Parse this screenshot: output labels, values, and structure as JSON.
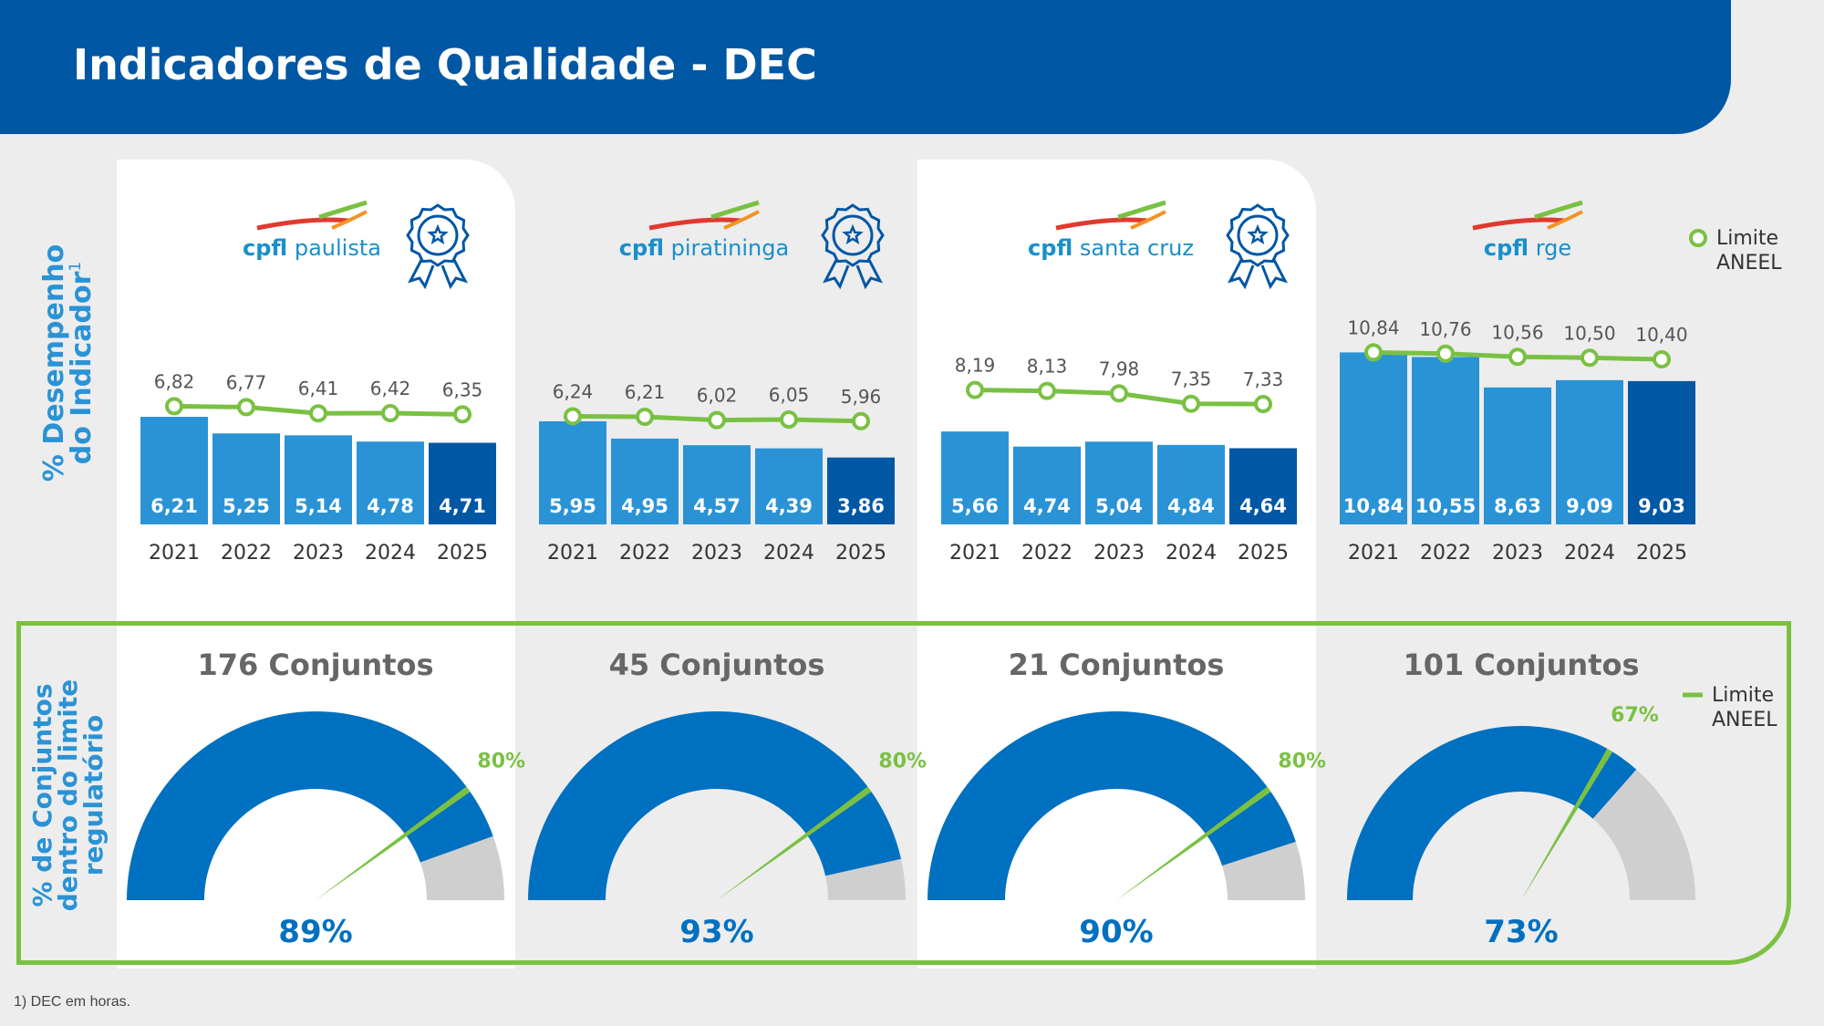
{
  "header": {
    "title": "Indicadores de Qualidade - DEC"
  },
  "side_labels": {
    "top": [
      "% Desempenho",
      "do Indicador"
    ],
    "top_superscript": "1",
    "bottom": [
      "% de Conjuntos",
      "dentro do limite",
      "regulatório"
    ]
  },
  "legend": {
    "line1": "Limite",
    "line2": "ANEEL"
  },
  "footnote": "1) DEC em horas.",
  "colors": {
    "header": "#0057A4",
    "bar": "#2A93D5",
    "bar_current": "#0057A4",
    "limit": "#7AC143",
    "gauge_fill": "#0070C0",
    "gauge_rest": "#D0CFCF",
    "title_gray": "#666666"
  },
  "companies": [
    {
      "brand": "cpfl",
      "name": "paulista",
      "award_icon": "award-ribbon-icon"
    },
    {
      "brand": "cpfl",
      "name": "piratininga",
      "award_icon": "award-ribbon-icon"
    },
    {
      "brand": "cpfl",
      "name": "santa cruz",
      "award_icon": "award-ribbon-icon"
    },
    {
      "brand": "cpfl",
      "name": "rge",
      "award_icon": null
    }
  ],
  "chart_data": [
    {
      "type": "bar",
      "title": "cpfl paulista",
      "categories": [
        "2021",
        "2022",
        "2023",
        "2024",
        "2025"
      ],
      "series": [
        {
          "name": "",
          "values": [
            6.21,
            5.25,
            5.14,
            4.78,
            4.71
          ],
          "labels": [
            "6,21",
            "5,25",
            "5,14",
            "4,78",
            "4,71"
          ]
        },
        {
          "name": "Limite ANEEL",
          "type": "line",
          "values": [
            6.82,
            6.77,
            6.41,
            6.42,
            6.35
          ],
          "labels": [
            "6,82",
            "6,77",
            "6,41",
            "6,42",
            "6,35"
          ]
        }
      ]
    },
    {
      "type": "bar",
      "title": "cpfl piratininga",
      "categories": [
        "2021",
        "2022",
        "2023",
        "2024",
        "2025"
      ],
      "series": [
        {
          "name": "",
          "values": [
            5.95,
            4.95,
            4.57,
            4.39,
            3.86
          ],
          "labels": [
            "5,95",
            "4,95",
            "4,57",
            "4,39",
            "3,86"
          ]
        },
        {
          "name": "Limite ANEEL",
          "type": "line",
          "values": [
            6.24,
            6.21,
            6.02,
            6.05,
            5.96
          ],
          "labels": [
            "6,24",
            "6,21",
            "6,02",
            "6,05",
            "5,96"
          ]
        }
      ]
    },
    {
      "type": "bar",
      "title": "cpfl santa cruz",
      "categories": [
        "2021",
        "2022",
        "2023",
        "2024",
        "2025"
      ],
      "series": [
        {
          "name": "",
          "values": [
            5.66,
            4.74,
            5.04,
            4.84,
            4.64
          ],
          "labels": [
            "5,66",
            "4,74",
            "5,04",
            "4,84",
            "4,64"
          ]
        },
        {
          "name": "Limite ANEEL",
          "type": "line",
          "values": [
            8.19,
            8.13,
            7.98,
            7.35,
            7.33
          ],
          "labels": [
            "8,19",
            "8,13",
            "7,98",
            "7,35",
            "7,33"
          ]
        }
      ]
    },
    {
      "type": "bar",
      "title": "cpfl rge",
      "categories": [
        "2021",
        "2022",
        "2023",
        "2024",
        "2025"
      ],
      "series": [
        {
          "name": "",
          "values": [
            10.84,
            10.55,
            8.63,
            9.09,
            9.03
          ],
          "labels": [
            "10,84",
            "10,55",
            "8,63",
            "9,09",
            "9,03"
          ]
        },
        {
          "name": "Limite ANEEL",
          "type": "line",
          "values": [
            10.84,
            10.76,
            10.56,
            10.5,
            10.4
          ],
          "labels": [
            "10,84",
            "10,76",
            "10,56",
            "10,50",
            "10,40"
          ]
        }
      ]
    },
    {
      "type": "gauge",
      "title": "176 Conjuntos",
      "value": 89,
      "value_label": "89%",
      "limit": 80,
      "limit_label": "80%"
    },
    {
      "type": "gauge",
      "title": "45 Conjuntos",
      "value": 93,
      "value_label": "93%",
      "limit": 80,
      "limit_label": "80%"
    },
    {
      "type": "gauge",
      "title": "21 Conjuntos",
      "value": 90,
      "value_label": "90%",
      "limit": 80,
      "limit_label": "80%"
    },
    {
      "type": "gauge",
      "title": "101 Conjuntos",
      "value": 73,
      "value_label": "73%",
      "limit": 67,
      "limit_label": "67%"
    }
  ]
}
